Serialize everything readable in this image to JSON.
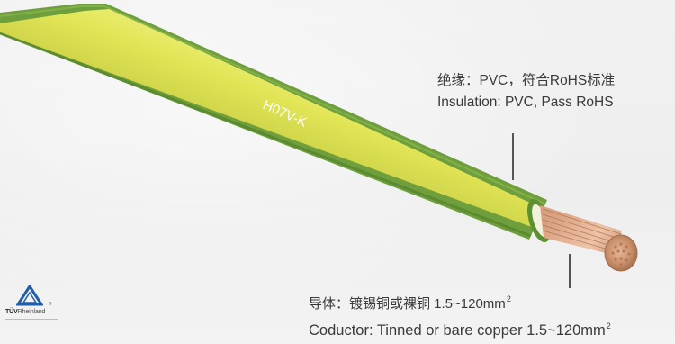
{
  "cable_marking": "H07V-K",
  "insulation_callout": {
    "zh": "绝缘：PVC，符合RoHS标准",
    "en": "Insulation: PVC, Pass RoHS"
  },
  "conductor_callout": {
    "zh": "导体：镀锡铜或裸铜 1.5~120mm",
    "zh_sup": "2",
    "en": "Coductor: Tinned or bare copper 1.5~120mm",
    "en_sup": "2"
  },
  "logo": {
    "brand_bold": "TÜV",
    "brand_rest": "Rheinland",
    "mark": "®",
    "icon": "tuv-triangle-icon"
  },
  "colors": {
    "insulation_green": "#6e9f3c",
    "insulation_yellow": "#e3e65a",
    "copper": "#c98f6a",
    "text": "#3a3a3a",
    "logo_blue": "#1f5ea8"
  }
}
